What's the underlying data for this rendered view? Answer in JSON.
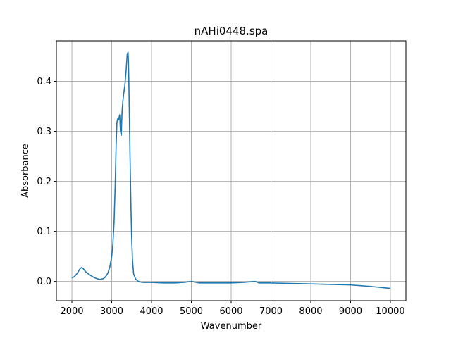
{
  "chart_data": {
    "type": "line",
    "title": "nAHi0448.spa",
    "xlabel": "Wavenumber",
    "ylabel": "Absorbance",
    "xlim": [
      1610,
      10390
    ],
    "ylim": [
      -0.0385,
      0.481
    ],
    "xticks": [
      2000,
      3000,
      4000,
      5000,
      6000,
      7000,
      8000,
      9000,
      10000
    ],
    "xtick_labels": [
      "2000",
      "3000",
      "4000",
      "5000",
      "6000",
      "7000",
      "8000",
      "9000",
      "10000"
    ],
    "yticks": [
      0.0,
      0.1,
      0.2,
      0.3,
      0.4
    ],
    "ytick_labels": [
      "0.0",
      "0.1",
      "0.2",
      "0.3",
      "0.4"
    ],
    "grid": true,
    "legend": "none",
    "line_color": "#1f77b4",
    "series": [
      {
        "x": [
          2000,
          2050,
          2100,
          2150,
          2200,
          2240,
          2280,
          2350,
          2450,
          2550,
          2650,
          2720,
          2800,
          2850,
          2900,
          2950,
          3000,
          3030,
          3060,
          3090,
          3110,
          3130,
          3150,
          3170,
          3200,
          3220,
          3240,
          3260,
          3280,
          3300,
          3330,
          3360,
          3390,
          3410,
          3420,
          3430,
          3440,
          3450,
          3460,
          3480,
          3500,
          3520,
          3550,
          3600,
          3650,
          3700,
          3800,
          4000,
          4300,
          4600,
          4800,
          5000,
          5200,
          5500,
          6000,
          6300,
          6600,
          6700,
          6900,
          7500,
          8000,
          8500,
          9000,
          9500,
          10000
        ],
        "y": [
          0.007,
          0.009,
          0.013,
          0.018,
          0.025,
          0.028,
          0.026,
          0.019,
          0.013,
          0.008,
          0.005,
          0.004,
          0.006,
          0.01,
          0.016,
          0.028,
          0.05,
          0.075,
          0.12,
          0.2,
          0.27,
          0.318,
          0.325,
          0.323,
          0.333,
          0.3,
          0.292,
          0.34,
          0.36,
          0.375,
          0.392,
          0.42,
          0.455,
          0.458,
          0.44,
          0.4,
          0.35,
          0.3,
          0.25,
          0.16,
          0.09,
          0.045,
          0.015,
          0.005,
          0.001,
          -0.001,
          -0.002,
          -0.002,
          -0.003,
          -0.003,
          -0.002,
          0.0,
          -0.003,
          -0.003,
          -0.003,
          -0.002,
          0.0,
          -0.003,
          -0.003,
          -0.004,
          -0.005,
          -0.006,
          -0.007,
          -0.01,
          -0.014
        ]
      }
    ]
  }
}
